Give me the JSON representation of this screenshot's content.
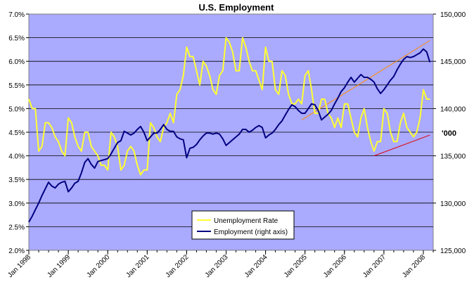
{
  "chart_data": {
    "type": "line",
    "title": "U.S. Employment",
    "unit_label": "'000",
    "x_axis": {
      "start": "1998-01",
      "end": "2008-04",
      "tick_labels": [
        "Jan 1998",
        "Jan 1999",
        "Jan 2000",
        "Jan 2001",
        "Jan 2002",
        "Jan 2003",
        "Jan 2004",
        "Jan 2005",
        "Jan 2006",
        "Jan 2007",
        "Jan 2008"
      ]
    },
    "y_left": {
      "min": 2.0,
      "max": 7.0,
      "tick_labels": [
        "2.0%",
        "2.5%",
        "3.0%",
        "3.5%",
        "4.0%",
        "4.5%",
        "5.0%",
        "5.5%",
        "6.0%",
        "6.5%",
        "7.0%"
      ]
    },
    "y_right": {
      "min": 125000,
      "max": 150000,
      "tick_labels": [
        "125,000",
        "130,000",
        "135,000",
        "140,000",
        "145,000",
        "150,000"
      ]
    },
    "grid": true,
    "legend_position": "bottom-center",
    "plot_background": "#aaaaff",
    "series": [
      {
        "name": "Unemployment Rate",
        "axis": "left",
        "color": "#ffff33",
        "points": [
          [
            "1998-01",
            5.2
          ],
          [
            "1998-02",
            5.0
          ],
          [
            "1998-03",
            5.0
          ],
          [
            "1998-04",
            4.1
          ],
          [
            "1998-05",
            4.2
          ],
          [
            "1998-06",
            4.7
          ],
          [
            "1998-07",
            4.7
          ],
          [
            "1998-08",
            4.6
          ],
          [
            "1998-09",
            4.4
          ],
          [
            "1998-10",
            4.3
          ],
          [
            "1998-11",
            4.1
          ],
          [
            "1998-12",
            4.0
          ],
          [
            "1999-01",
            4.8
          ],
          [
            "1999-02",
            4.7
          ],
          [
            "1999-03",
            4.4
          ],
          [
            "1999-04",
            4.2
          ],
          [
            "1999-05",
            4.1
          ],
          [
            "1999-06",
            4.5
          ],
          [
            "1999-07",
            4.5
          ],
          [
            "1999-08",
            4.2
          ],
          [
            "1999-09",
            4.1
          ],
          [
            "1999-10",
            4.0
          ],
          [
            "1999-11",
            3.8
          ],
          [
            "1999-12",
            3.8
          ],
          [
            "2000-01",
            3.7
          ],
          [
            "2000-02",
            4.5
          ],
          [
            "2000-03",
            4.4
          ],
          [
            "2000-04",
            4.2
          ],
          [
            "2000-05",
            3.7
          ],
          [
            "2000-06",
            3.8
          ],
          [
            "2000-07",
            4.1
          ],
          [
            "2000-08",
            4.2
          ],
          [
            "2000-09",
            4.1
          ],
          [
            "2000-10",
            3.8
          ],
          [
            "2000-11",
            3.6
          ],
          [
            "2000-12",
            3.7
          ],
          [
            "2001-01",
            3.7
          ],
          [
            "2001-02",
            4.7
          ],
          [
            "2001-03",
            4.6
          ],
          [
            "2001-04",
            4.4
          ],
          [
            "2001-05",
            4.3
          ],
          [
            "2001-06",
            4.6
          ],
          [
            "2001-07",
            4.7
          ],
          [
            "2001-08",
            4.9
          ],
          [
            "2001-09",
            4.7
          ],
          [
            "2001-10",
            5.3
          ],
          [
            "2001-11",
            5.4
          ],
          [
            "2001-12",
            5.7
          ],
          [
            "2002-01",
            6.3
          ],
          [
            "2002-02",
            6.1
          ],
          [
            "2002-03",
            6.1
          ],
          [
            "2002-04",
            5.8
          ],
          [
            "2002-05",
            5.5
          ],
          [
            "2002-06",
            6.0
          ],
          [
            "2002-07",
            5.9
          ],
          [
            "2002-08",
            5.7
          ],
          [
            "2002-09",
            5.4
          ],
          [
            "2002-10",
            5.3
          ],
          [
            "2002-11",
            5.7
          ],
          [
            "2002-12",
            5.8
          ],
          [
            "2003-01",
            6.5
          ],
          [
            "2003-02",
            6.4
          ],
          [
            "2003-03",
            6.2
          ],
          [
            "2003-04",
            5.8
          ],
          [
            "2003-05",
            5.8
          ],
          [
            "2003-06",
            6.5
          ],
          [
            "2003-07",
            6.3
          ],
          [
            "2003-08",
            6.0
          ],
          [
            "2003-09",
            5.8
          ],
          [
            "2003-10",
            5.8
          ],
          [
            "2003-11",
            5.6
          ],
          [
            "2003-12",
            5.4
          ],
          [
            "2004-01",
            6.3
          ],
          [
            "2004-02",
            6.0
          ],
          [
            "2004-03",
            6.0
          ],
          [
            "2004-04",
            5.4
          ],
          [
            "2004-05",
            5.3
          ],
          [
            "2004-06",
            5.8
          ],
          [
            "2004-07",
            5.7
          ],
          [
            "2004-08",
            5.3
          ],
          [
            "2004-09",
            5.1
          ],
          [
            "2004-10",
            5.1
          ],
          [
            "2004-11",
            5.2
          ],
          [
            "2004-12",
            5.1
          ],
          [
            "2005-01",
            5.7
          ],
          [
            "2005-02",
            5.8
          ],
          [
            "2005-03",
            5.4
          ],
          [
            "2005-04",
            4.9
          ],
          [
            "2005-05",
            4.9
          ],
          [
            "2005-06",
            5.2
          ],
          [
            "2005-07",
            5.2
          ],
          [
            "2005-08",
            4.9
          ],
          [
            "2005-09",
            4.8
          ],
          [
            "2005-10",
            4.6
          ],
          [
            "2005-11",
            4.8
          ],
          [
            "2005-12",
            4.6
          ],
          [
            "2006-01",
            5.1
          ],
          [
            "2006-02",
            5.1
          ],
          [
            "2006-03",
            4.8
          ],
          [
            "2006-04",
            4.5
          ],
          [
            "2006-05",
            4.4
          ],
          [
            "2006-06",
            4.8
          ],
          [
            "2006-07",
            5.0
          ],
          [
            "2006-08",
            4.6
          ],
          [
            "2006-09",
            4.3
          ],
          [
            "2006-10",
            4.1
          ],
          [
            "2006-11",
            4.3
          ],
          [
            "2006-12",
            4.3
          ],
          [
            "2007-01",
            5.0
          ],
          [
            "2007-02",
            4.9
          ],
          [
            "2007-03",
            4.5
          ],
          [
            "2007-04",
            4.3
          ],
          [
            "2007-05",
            4.3
          ],
          [
            "2007-06",
            4.7
          ],
          [
            "2007-07",
            4.9
          ],
          [
            "2007-08",
            4.6
          ],
          [
            "2007-09",
            4.5
          ],
          [
            "2007-10",
            4.4
          ],
          [
            "2007-11",
            4.5
          ],
          [
            "2007-12",
            4.8
          ],
          [
            "2008-01",
            5.4
          ],
          [
            "2008-02",
            5.2
          ],
          [
            "2008-03",
            5.2
          ]
        ]
      },
      {
        "name": "Employment (right axis)",
        "axis": "right",
        "color": "#000080",
        "points": [
          [
            "1998-01",
            128000
          ],
          [
            "1998-02",
            128600
          ],
          [
            "1998-03",
            129300
          ],
          [
            "1998-04",
            130000
          ],
          [
            "1998-05",
            130800
          ],
          [
            "1998-06",
            131500
          ],
          [
            "1998-07",
            132200
          ],
          [
            "1998-08",
            131800
          ],
          [
            "1998-09",
            131600
          ],
          [
            "1998-10",
            132000
          ],
          [
            "1998-11",
            132200
          ],
          [
            "1998-12",
            132300
          ],
          [
            "1999-01",
            131200
          ],
          [
            "1999-02",
            131600
          ],
          [
            "1999-03",
            132100
          ],
          [
            "1999-04",
            132300
          ],
          [
            "1999-05",
            133200
          ],
          [
            "1999-06",
            134300
          ],
          [
            "1999-07",
            134700
          ],
          [
            "1999-08",
            134100
          ],
          [
            "1999-09",
            133700
          ],
          [
            "1999-10",
            134400
          ],
          [
            "1999-11",
            134500
          ],
          [
            "1999-12",
            134600
          ],
          [
            "2000-01",
            134700
          ],
          [
            "2000-02",
            135200
          ],
          [
            "2000-03",
            135800
          ],
          [
            "2000-04",
            136400
          ],
          [
            "2000-05",
            136600
          ],
          [
            "2000-06",
            137600
          ],
          [
            "2000-07",
            137400
          ],
          [
            "2000-08",
            137200
          ],
          [
            "2000-09",
            137400
          ],
          [
            "2000-10",
            137800
          ],
          [
            "2000-11",
            138100
          ],
          [
            "2000-12",
            137500
          ],
          [
            "2001-01",
            136600
          ],
          [
            "2001-02",
            137000
          ],
          [
            "2001-03",
            137400
          ],
          [
            "2001-04",
            137400
          ],
          [
            "2001-05",
            137800
          ],
          [
            "2001-06",
            138300
          ],
          [
            "2001-07",
            137800
          ],
          [
            "2001-08",
            137600
          ],
          [
            "2001-09",
            137600
          ],
          [
            "2001-10",
            137000
          ],
          [
            "2001-11",
            136800
          ],
          [
            "2001-12",
            136700
          ],
          [
            "2002-01",
            134800
          ],
          [
            "2002-02",
            135800
          ],
          [
            "2002-03",
            135900
          ],
          [
            "2002-04",
            136200
          ],
          [
            "2002-05",
            136700
          ],
          [
            "2002-06",
            137100
          ],
          [
            "2002-07",
            137400
          ],
          [
            "2002-08",
            137400
          ],
          [
            "2002-09",
            137300
          ],
          [
            "2002-10",
            137400
          ],
          [
            "2002-11",
            137300
          ],
          [
            "2002-12",
            136800
          ],
          [
            "2003-01",
            136100
          ],
          [
            "2003-02",
            136400
          ],
          [
            "2003-03",
            136700
          ],
          [
            "2003-04",
            137000
          ],
          [
            "2003-05",
            137300
          ],
          [
            "2003-06",
            137800
          ],
          [
            "2003-07",
            137800
          ],
          [
            "2003-08",
            137500
          ],
          [
            "2003-09",
            137700
          ],
          [
            "2003-10",
            138000
          ],
          [
            "2003-11",
            138200
          ],
          [
            "2003-12",
            138000
          ],
          [
            "2004-01",
            136900
          ],
          [
            "2004-02",
            137200
          ],
          [
            "2004-03",
            137400
          ],
          [
            "2004-04",
            137800
          ],
          [
            "2004-05",
            138300
          ],
          [
            "2004-06",
            138700
          ],
          [
            "2004-07",
            139300
          ],
          [
            "2004-08",
            139900
          ],
          [
            "2004-09",
            140400
          ],
          [
            "2004-10",
            140200
          ],
          [
            "2004-11",
            139800
          ],
          [
            "2004-12",
            139500
          ],
          [
            "2005-01",
            139500
          ],
          [
            "2005-02",
            140000
          ],
          [
            "2005-03",
            140500
          ],
          [
            "2005-04",
            140400
          ],
          [
            "2005-05",
            139800
          ],
          [
            "2005-06",
            138800
          ],
          [
            "2005-07",
            139100
          ],
          [
            "2005-08",
            139400
          ],
          [
            "2005-09",
            139800
          ],
          [
            "2005-10",
            140500
          ],
          [
            "2005-11",
            141100
          ],
          [
            "2005-12",
            141800
          ],
          [
            "2006-01",
            142200
          ],
          [
            "2006-02",
            142800
          ],
          [
            "2006-03",
            143300
          ],
          [
            "2006-04",
            142800
          ],
          [
            "2006-05",
            143200
          ],
          [
            "2006-06",
            143600
          ],
          [
            "2006-07",
            143300
          ],
          [
            "2006-08",
            143300
          ],
          [
            "2006-09",
            143100
          ],
          [
            "2006-10",
            142800
          ],
          [
            "2006-11",
            142100
          ],
          [
            "2006-12",
            141600
          ],
          [
            "2007-01",
            142000
          ],
          [
            "2007-02",
            142500
          ],
          [
            "2007-03",
            143000
          ],
          [
            "2007-04",
            143400
          ],
          [
            "2007-05",
            144100
          ],
          [
            "2007-06",
            144700
          ],
          [
            "2007-07",
            145200
          ],
          [
            "2007-08",
            145500
          ],
          [
            "2007-09",
            145400
          ],
          [
            "2007-10",
            145500
          ],
          [
            "2007-11",
            145700
          ],
          [
            "2007-12",
            145900
          ],
          [
            "2008-01",
            146300
          ],
          [
            "2008-02",
            146000
          ],
          [
            "2008-03",
            144900
          ]
        ]
      }
    ],
    "trend_lines": [
      {
        "color": "#ff8c00",
        "axis": "right",
        "points": [
          [
            "2004-12",
            138800
          ],
          [
            "2008-03",
            147200
          ]
        ]
      },
      {
        "color": "#e00000",
        "axis": "right",
        "points": [
          [
            "2006-10",
            135000
          ],
          [
            "2008-03",
            137200
          ]
        ]
      }
    ]
  }
}
